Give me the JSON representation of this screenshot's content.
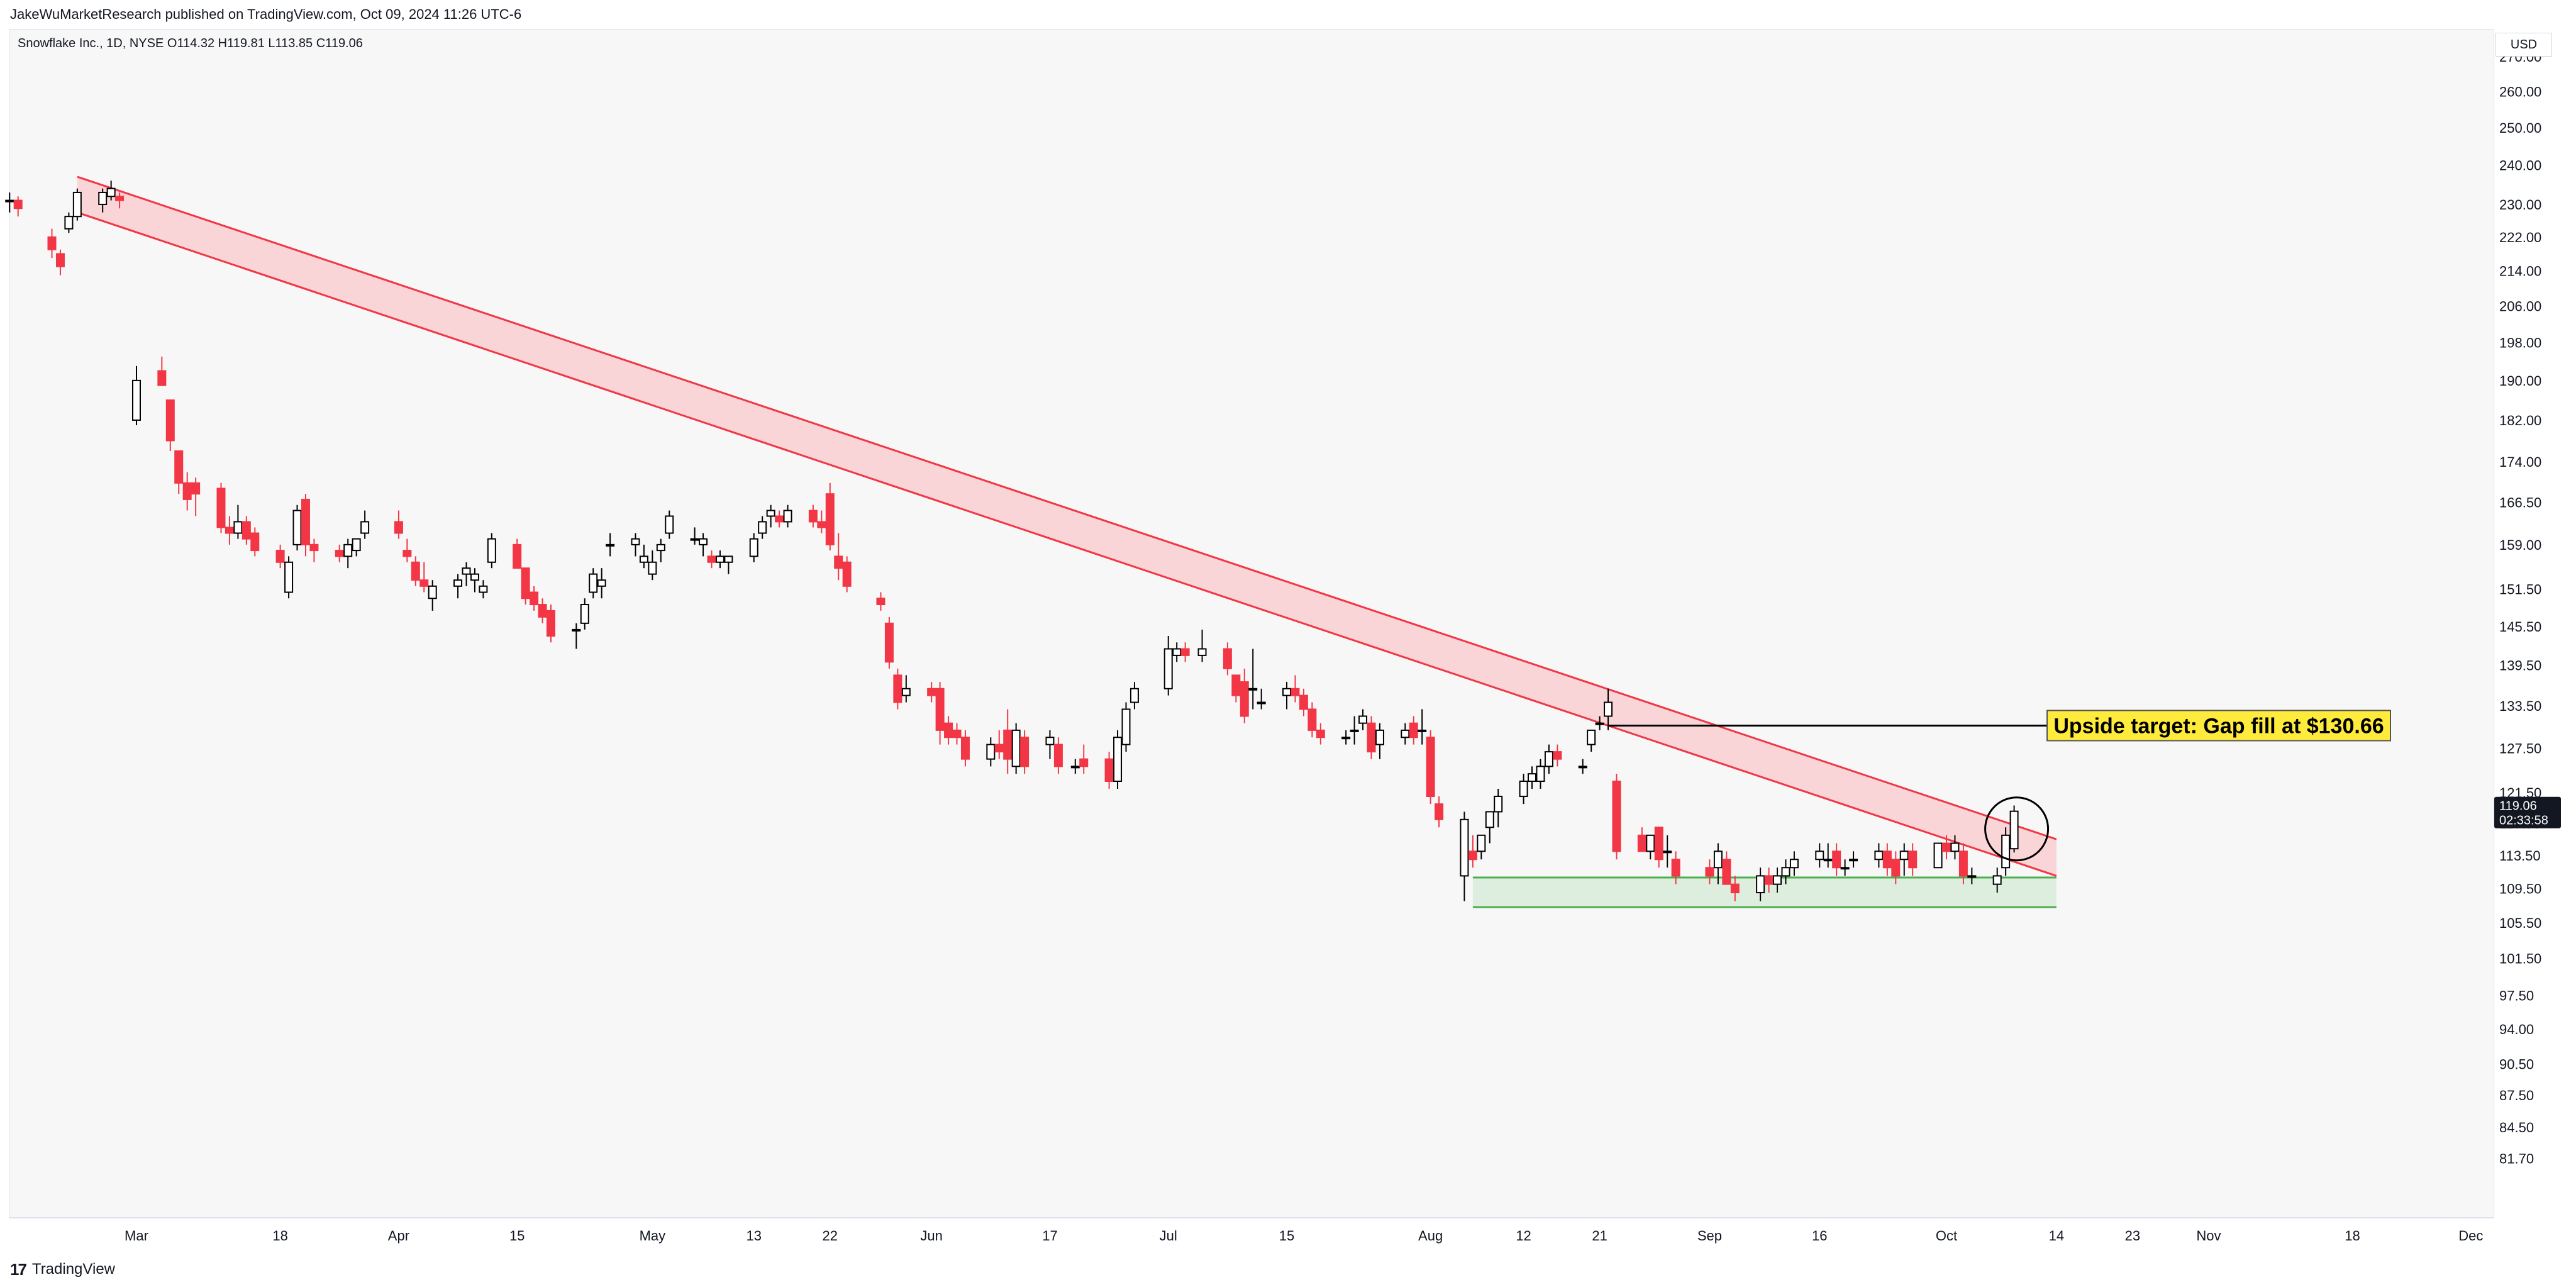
{
  "header": {
    "publish_line": "JakeWuMarketResearch published on TradingView.com, Oct 09, 2024 11:26 UTC-6"
  },
  "legend": {
    "symbol_line": "Snowflake Inc., 1D, NYSE  O114.32  H119.81  L113.85  C119.06"
  },
  "price_axis": {
    "currency": "USD",
    "last_price": "119.06",
    "countdown": "02:33:58"
  },
  "footer": {
    "logo_text": "TradingView"
  },
  "colors": {
    "up_body": "#ffffff",
    "up_border": "#000000",
    "down": "#f23645",
    "channel_fill": "#f9c6cb",
    "channel_line": "#f23645",
    "support_fill": "#d9ecd9",
    "support_line": "#4caf50",
    "annotation_bg": "#ffeb3b",
    "last_price_bg": "#131722"
  },
  "chart_data": {
    "type": "candlestick",
    "title": "Snowflake Inc., 1D, NYSE",
    "ohlc_last": {
      "open": 114.32,
      "high": 119.81,
      "low": 113.85,
      "close": 119.06
    },
    "y_scale": "log",
    "ylim": [
      78.5,
      270
    ],
    "y_ticks": [
      81.7,
      84.5,
      87.5,
      90.5,
      94.0,
      97.5,
      101.5,
      105.5,
      109.5,
      113.5,
      117.5,
      121.5,
      127.5,
      133.5,
      139.5,
      145.5,
      151.5,
      159.0,
      166.5,
      174.0,
      182.0,
      190.0,
      198.0,
      206.0,
      214.0,
      222.0,
      230.0,
      240.0,
      250.0,
      260.0
    ],
    "x_ticks": [
      {
        "label": "Mar",
        "date": "2024-03-01"
      },
      {
        "label": "18",
        "date": "2024-03-18"
      },
      {
        "label": "Apr",
        "date": "2024-04-01"
      },
      {
        "label": "15",
        "date": "2024-04-15"
      },
      {
        "label": "May",
        "date": "2024-05-01"
      },
      {
        "label": "13",
        "date": "2024-05-13"
      },
      {
        "label": "22",
        "date": "2024-05-22"
      },
      {
        "label": "Jun",
        "date": "2024-06-03"
      },
      {
        "label": "17",
        "date": "2024-06-17"
      },
      {
        "label": "Jul",
        "date": "2024-07-01"
      },
      {
        "label": "15",
        "date": "2024-07-15"
      },
      {
        "label": "Aug",
        "date": "2024-08-01"
      },
      {
        "label": "12",
        "date": "2024-08-12"
      },
      {
        "label": "21",
        "date": "2024-08-21"
      },
      {
        "label": "Sep",
        "date": "2024-09-03"
      },
      {
        "label": "16",
        "date": "2024-09-16"
      },
      {
        "label": "Oct",
        "date": "2024-10-01"
      },
      {
        "label": "14",
        "date": "2024-10-14"
      },
      {
        "label": "23",
        "date": "2024-10-23"
      },
      {
        "label": "Nov",
        "date": "2024-11-01"
      },
      {
        "label": "18",
        "date": "2024-11-18"
      },
      {
        "label": "Dec",
        "date": "2024-12-02"
      }
    ],
    "candles": [
      [
        "2024-02-15",
        231,
        233,
        228,
        231
      ],
      [
        "2024-02-16",
        231,
        232,
        227,
        229
      ],
      [
        "2024-02-20",
        222,
        224,
        217,
        219
      ],
      [
        "2024-02-21",
        218,
        219,
        213,
        215
      ],
      [
        "2024-02-22",
        224,
        228,
        223,
        227
      ],
      [
        "2024-02-23",
        227,
        234,
        226,
        233
      ],
      [
        "2024-02-26",
        230,
        234,
        228,
        233
      ],
      [
        "2024-02-27",
        232,
        236,
        231,
        234
      ],
      [
        "2024-02-28",
        232,
        233,
        229,
        231
      ],
      [
        "2024-03-01",
        182,
        193,
        181,
        190
      ],
      [
        "2024-03-04",
        192,
        195,
        189,
        189
      ],
      [
        "2024-03-05",
        186,
        186,
        176,
        178
      ],
      [
        "2024-03-06",
        176,
        176,
        168,
        170
      ],
      [
        "2024-03-07",
        170,
        172,
        165,
        167
      ],
      [
        "2024-03-08",
        170,
        171,
        164,
        168
      ],
      [
        "2024-03-11",
        169,
        170,
        161,
        162
      ],
      [
        "2024-03-12",
        162,
        164,
        159,
        161
      ],
      [
        "2024-03-13",
        161,
        166,
        160,
        163
      ],
      [
        "2024-03-14",
        163,
        164,
        159,
        160
      ],
      [
        "2024-03-15",
        161,
        162,
        157,
        158
      ],
      [
        "2024-03-18",
        158,
        159,
        155,
        156
      ],
      [
        "2024-03-19",
        151,
        157,
        150,
        156
      ],
      [
        "2024-03-20",
        159,
        166,
        158,
        165
      ],
      [
        "2024-03-21",
        167,
        168,
        157,
        159
      ],
      [
        "2024-03-22",
        159,
        160,
        156,
        158
      ],
      [
        "2024-03-25",
        158,
        159,
        156,
        157
      ],
      [
        "2024-03-26",
        157,
        160,
        155,
        159
      ],
      [
        "2024-03-27",
        158,
        160,
        157,
        160
      ],
      [
        "2024-03-28",
        161,
        165,
        160,
        163
      ],
      [
        "2024-04-01",
        163,
        165,
        160,
        161
      ],
      [
        "2024-04-02",
        158,
        160,
        156,
        157
      ],
      [
        "2024-04-03",
        156,
        157,
        152,
        153
      ],
      [
        "2024-04-04",
        153,
        156,
        151,
        152
      ],
      [
        "2024-04-05",
        150,
        153,
        148,
        152
      ],
      [
        "2024-04-08",
        152,
        154,
        150,
        153
      ],
      [
        "2024-04-09",
        154,
        156,
        152,
        155
      ],
      [
        "2024-04-10",
        153,
        155,
        151,
        154
      ],
      [
        "2024-04-11",
        151,
        153,
        150,
        152
      ],
      [
        "2024-04-12",
        156,
        161,
        155,
        160
      ],
      [
        "2024-04-15",
        159,
        160,
        155,
        155
      ],
      [
        "2024-04-16",
        155,
        155,
        149,
        150
      ],
      [
        "2024-04-17",
        151,
        152,
        148,
        149
      ],
      [
        "2024-04-18",
        149,
        150,
        146,
        147
      ],
      [
        "2024-04-19",
        148,
        149,
        143,
        144
      ],
      [
        "2024-04-22",
        145,
        146,
        142,
        145
      ],
      [
        "2024-04-23",
        146,
        150,
        145,
        149
      ],
      [
        "2024-04-24",
        151,
        155,
        150,
        154
      ],
      [
        "2024-04-25",
        152,
        155,
        150,
        153
      ],
      [
        "2024-04-26",
        159,
        161,
        157,
        159
      ],
      [
        "2024-04-29",
        159,
        161,
        157,
        160
      ],
      [
        "2024-04-30",
        156,
        159,
        155,
        157
      ],
      [
        "2024-05-01",
        154,
        158,
        153,
        156
      ],
      [
        "2024-05-02",
        158,
        160,
        156,
        159
      ],
      [
        "2024-05-03",
        161,
        165,
        160,
        164
      ],
      [
        "2024-05-06",
        160,
        162,
        159,
        160
      ],
      [
        "2024-05-07",
        159,
        161,
        157,
        160
      ],
      [
        "2024-05-08",
        157,
        158,
        155,
        156
      ],
      [
        "2024-05-09",
        156,
        158,
        155,
        157
      ],
      [
        "2024-05-10",
        156,
        157,
        154,
        157
      ],
      [
        "2024-05-13",
        157,
        161,
        156,
        160
      ],
      [
        "2024-05-14",
        161,
        164,
        160,
        163
      ],
      [
        "2024-05-15",
        164,
        166,
        162,
        165
      ],
      [
        "2024-05-16",
        164,
        165,
        162,
        163
      ],
      [
        "2024-05-17",
        163,
        166,
        162,
        165
      ],
      [
        "2024-05-20",
        165,
        166,
        162,
        163
      ],
      [
        "2024-05-21",
        163,
        165,
        161,
        162
      ],
      [
        "2024-05-22",
        168,
        170,
        158,
        159
      ],
      [
        "2024-05-23",
        157,
        161,
        153,
        155
      ],
      [
        "2024-05-24",
        156,
        157,
        151,
        152
      ],
      [
        "2024-05-28",
        150,
        151,
        148,
        149
      ],
      [
        "2024-05-29",
        146,
        147,
        139,
        140
      ],
      [
        "2024-05-30",
        138,
        139,
        133,
        134
      ],
      [
        "2024-05-31",
        135,
        138,
        134,
        136
      ],
      [
        "2024-06-03",
        136,
        137,
        134,
        135
      ],
      [
        "2024-06-04",
        136,
        137,
        128,
        130
      ],
      [
        "2024-06-05",
        131,
        132,
        128,
        129
      ],
      [
        "2024-06-06",
        130,
        131,
        128,
        129
      ],
      [
        "2024-06-07",
        129,
        130,
        125,
        126
      ],
      [
        "2024-06-10",
        126,
        129,
        125,
        128
      ],
      [
        "2024-06-11",
        128,
        130,
        126,
        127
      ],
      [
        "2024-06-12",
        130,
        133,
        124,
        126
      ],
      [
        "2024-06-13",
        125,
        131,
        124,
        130
      ],
      [
        "2024-06-14",
        129,
        130,
        124,
        125
      ],
      [
        "2024-06-17",
        128,
        130,
        126,
        129
      ],
      [
        "2024-06-18",
        128,
        129,
        124,
        125
      ],
      [
        "2024-06-20",
        125,
        126,
        124,
        125
      ],
      [
        "2024-06-21",
        126,
        128,
        124,
        125
      ],
      [
        "2024-06-24",
        126,
        127,
        122,
        123
      ],
      [
        "2024-06-25",
        123,
        130,
        122,
        129
      ],
      [
        "2024-06-26",
        128,
        134,
        127,
        133
      ],
      [
        "2024-06-27",
        134,
        137,
        133,
        136
      ],
      [
        "2024-07-01",
        136,
        144,
        135,
        142
      ],
      [
        "2024-07-02",
        141,
        143,
        140,
        142
      ],
      [
        "2024-07-03",
        142,
        143,
        140,
        141
      ],
      [
        "2024-07-05",
        141,
        145,
        140,
        142
      ],
      [
        "2024-07-08",
        142,
        143,
        138,
        139
      ],
      [
        "2024-07-09",
        138,
        138,
        134,
        135
      ],
      [
        "2024-07-10",
        137,
        139,
        131,
        132
      ],
      [
        "2024-07-11",
        136,
        142,
        133,
        136
      ],
      [
        "2024-07-12",
        134,
        136,
        133,
        134
      ],
      [
        "2024-07-15",
        135,
        137,
        133,
        136
      ],
      [
        "2024-07-16",
        136,
        138,
        134,
        135
      ],
      [
        "2024-07-17",
        135,
        136,
        132,
        133
      ],
      [
        "2024-07-18",
        133,
        134,
        129,
        130
      ],
      [
        "2024-07-19",
        130,
        131,
        128,
        129
      ],
      [
        "2024-07-22",
        129,
        130,
        128,
        129
      ],
      [
        "2024-07-23",
        130,
        132,
        128,
        130
      ],
      [
        "2024-07-24",
        131,
        133,
        130,
        132
      ],
      [
        "2024-07-25",
        131,
        132,
        126,
        127
      ],
      [
        "2024-07-26",
        128,
        131,
        126,
        130
      ],
      [
        "2024-07-29",
        129,
        131,
        128,
        130
      ],
      [
        "2024-07-30",
        131,
        132,
        128,
        129
      ],
      [
        "2024-07-31",
        130,
        133,
        128,
        130
      ],
      [
        "2024-08-01",
        129,
        130,
        120,
        121
      ],
      [
        "2024-08-02",
        120,
        121,
        117,
        118
      ],
      [
        "2024-08-05",
        111,
        119,
        108,
        118
      ],
      [
        "2024-08-06",
        114,
        116,
        112,
        113
      ],
      [
        "2024-08-07",
        114,
        116,
        113,
        116
      ],
      [
        "2024-08-08",
        117,
        119,
        115,
        119
      ],
      [
        "2024-08-09",
        119,
        122,
        117,
        121
      ],
      [
        "2024-08-12",
        121,
        124,
        120,
        123
      ],
      [
        "2024-08-13",
        123,
        125,
        122,
        124
      ],
      [
        "2024-08-14",
        123,
        126,
        122,
        125
      ],
      [
        "2024-08-15",
        125,
        128,
        124,
        127
      ],
      [
        "2024-08-16",
        127,
        128,
        125,
        126
      ],
      [
        "2024-08-19",
        125,
        126,
        124,
        125
      ],
      [
        "2024-08-20",
        128,
        130,
        127,
        130
      ],
      [
        "2024-08-21",
        131,
        132,
        130,
        131
      ],
      [
        "2024-08-22",
        132,
        136,
        130,
        134
      ],
      [
        "2024-08-23",
        123,
        124,
        113,
        114
      ],
      [
        "2024-08-26",
        116,
        117,
        114,
        114
      ],
      [
        "2024-08-27",
        114,
        116,
        113,
        116
      ],
      [
        "2024-08-28",
        117,
        117,
        112,
        113
      ],
      [
        "2024-08-29",
        114,
        116,
        112,
        114
      ],
      [
        "2024-08-30",
        113,
        114,
        110,
        111
      ],
      [
        "2024-09-03",
        112,
        113,
        110,
        111
      ],
      [
        "2024-09-04",
        112,
        115,
        110,
        114
      ],
      [
        "2024-09-05",
        113,
        114,
        110,
        110
      ],
      [
        "2024-09-06",
        110,
        111,
        108,
        109
      ],
      [
        "2024-09-09",
        109,
        112,
        108,
        111
      ],
      [
        "2024-09-10",
        111,
        112,
        109,
        110
      ],
      [
        "2024-09-11",
        110,
        112,
        109,
        111
      ],
      [
        "2024-09-12",
        111,
        113,
        110,
        112
      ],
      [
        "2024-09-13",
        112,
        114,
        111,
        113
      ],
      [
        "2024-09-16",
        113,
        115,
        112,
        114
      ],
      [
        "2024-09-17",
        113,
        115,
        112,
        113
      ],
      [
        "2024-09-18",
        114,
        115,
        111,
        112
      ],
      [
        "2024-09-19",
        112,
        113,
        111,
        112
      ],
      [
        "2024-09-20",
        113,
        114,
        112,
        113
      ],
      [
        "2024-09-23",
        113,
        115,
        112,
        114
      ],
      [
        "2024-09-24",
        114,
        115,
        111,
        112
      ],
      [
        "2024-09-25",
        113,
        114,
        110,
        111
      ],
      [
        "2024-09-26",
        113,
        115,
        111,
        114
      ],
      [
        "2024-09-27",
        114,
        115,
        111,
        112
      ],
      [
        "2024-09-30",
        112,
        115,
        112,
        115
      ],
      [
        "2024-10-01",
        115,
        116,
        113,
        114
      ],
      [
        "2024-10-02",
        114,
        116,
        113,
        115
      ],
      [
        "2024-10-03",
        114,
        115,
        110,
        111
      ],
      [
        "2024-10-04",
        111,
        112,
        110,
        111
      ],
      [
        "2024-10-07",
        110,
        112,
        109,
        111
      ],
      [
        "2024-10-08",
        112,
        117,
        111,
        116
      ],
      [
        "2024-10-09",
        114.32,
        119.81,
        113.85,
        119.06
      ]
    ],
    "channel": {
      "start": {
        "date": "2024-02-23",
        "upper": 237,
        "lower": 228
      },
      "end": {
        "date": "2024-10-14",
        "upper": 115.5,
        "lower": 111
      }
    },
    "support_zone": {
      "start_date": "2024-08-06",
      "end_date": "2024-10-14",
      "top": 110.8,
      "bottom": 107.3
    },
    "gap_line": {
      "start_date": "2024-08-22",
      "end_date": "2024-11-05",
      "price": 130.66
    },
    "annotation": {
      "text": "Upside target: Gap fill at $130.66",
      "price": 130.66
    },
    "highlight_circle": {
      "date": "2024-10-09",
      "price": 116.8
    }
  }
}
